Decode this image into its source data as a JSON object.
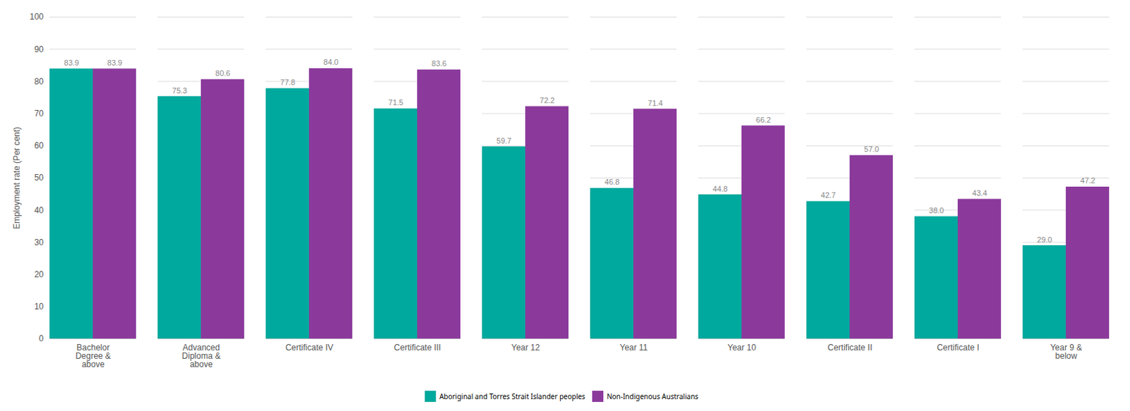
{
  "chart_data": {
    "type": "bar",
    "categories": [
      "Bachelor\nDegree &\nabove",
      "Advanced\nDiploma &\nabove",
      "Certificate IV",
      "Certificate III",
      "Year 12",
      "Year 11",
      "Year 10",
      "Certificate II",
      "Certificate I",
      "Year 9 &\nbelow"
    ],
    "series": [
      {
        "name": "Aboriginal and Torres Strait Islander peoples",
        "color": "#00A99D",
        "values": [
          83.9,
          75.3,
          77.8,
          71.5,
          59.7,
          46.8,
          44.8,
          42.7,
          38.0,
          29.0
        ],
        "value_labels": [
          "83.9",
          "75.3",
          "77.8",
          "71.5",
          "59.7",
          "46.8",
          "44.8",
          "42.7",
          "38.0",
          "29.0"
        ]
      },
      {
        "name": "Non-Indigenous Australians",
        "color": "#8B3A9C",
        "values": [
          83.9,
          80.6,
          84.0,
          83.6,
          72.2,
          71.4,
          66.2,
          57.0,
          43.4,
          47.2
        ],
        "value_labels": [
          "83.9",
          "80.6",
          "84.0",
          "83.6",
          "72.2",
          "71.4",
          "66.2",
          "57.0",
          "43.4",
          "47.2"
        ]
      }
    ],
    "ylabel": "Employment rate (Per cent)",
    "ylim": [
      0,
      100
    ],
    "yticks": [
      0,
      10,
      20,
      30,
      40,
      50,
      60,
      70,
      80,
      90,
      100
    ],
    "grid": true,
    "data_labels": true,
    "legend": "bottom"
  }
}
